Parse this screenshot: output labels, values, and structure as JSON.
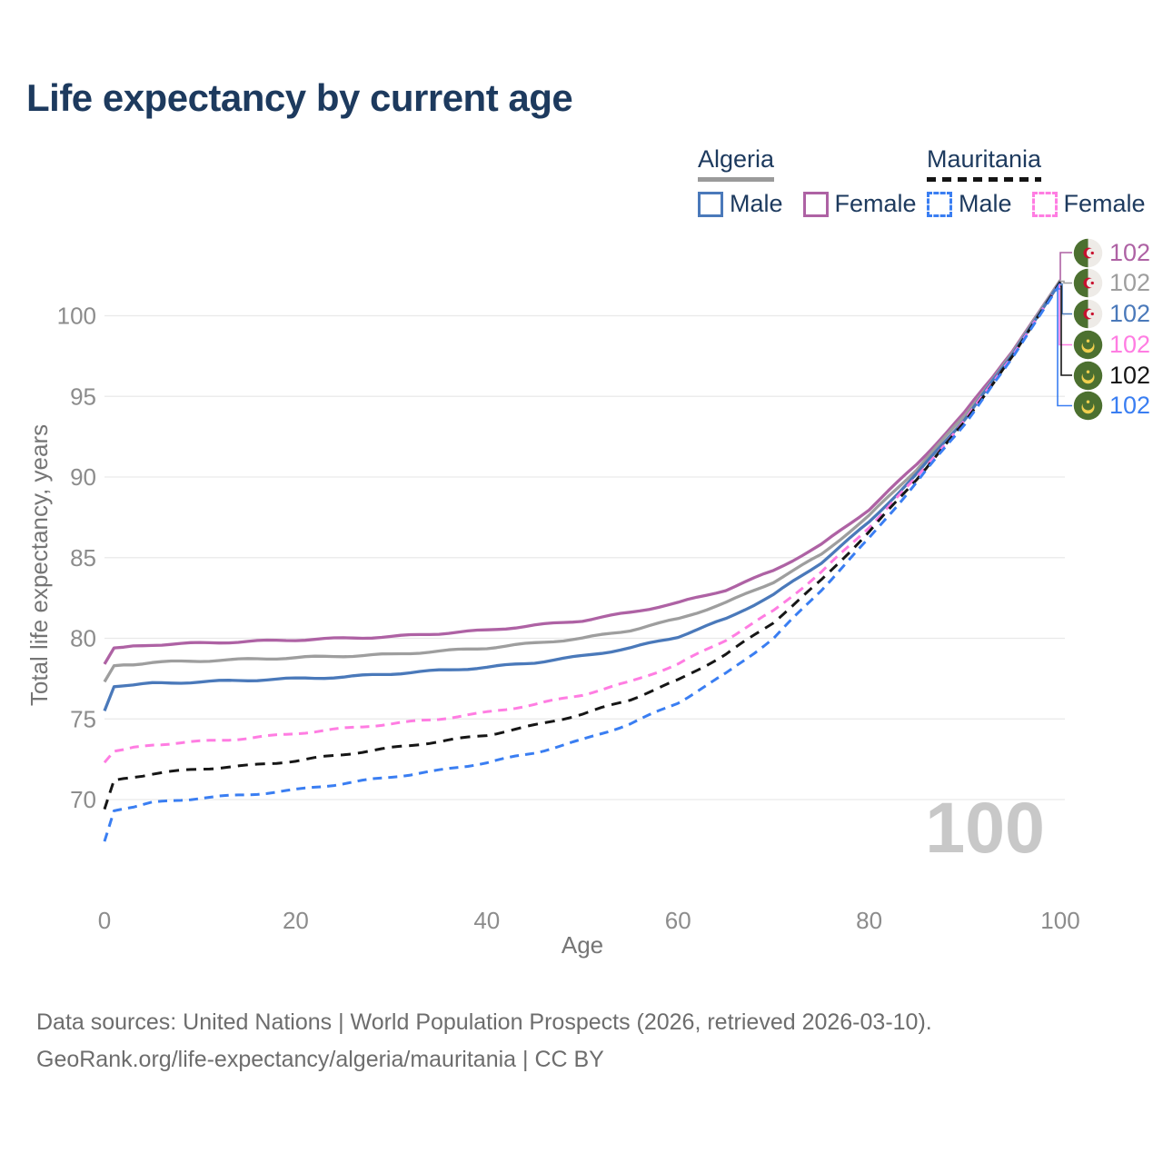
{
  "title": "Life expectancy by current age",
  "legend": {
    "groups": [
      {
        "label": "Algeria",
        "rule_style": "solid",
        "rule_color": "#9a9a9a",
        "items": [
          {
            "label": "Male",
            "color": "#4a79ba",
            "dashed": false
          },
          {
            "label": "Female",
            "color": "#ae62a4",
            "dashed": false
          }
        ]
      },
      {
        "label": "Mauritania",
        "rule_style": "dashed",
        "rule_color": "#141414",
        "items": [
          {
            "label": "Male",
            "color": "#3a7ef2",
            "dashed": true
          },
          {
            "label": "Female",
            "color": "#ff7de2",
            "dashed": true
          }
        ]
      }
    ]
  },
  "axes": {
    "x": {
      "title": "Age",
      "tick_values": [
        0,
        20,
        40,
        60,
        80,
        100
      ]
    },
    "y": {
      "title": "Total life expectancy, years",
      "tick_values": [
        70,
        75,
        80,
        85,
        90,
        95,
        100
      ]
    }
  },
  "watermark": "100",
  "grid_color": "#e9e9e9",
  "tick_label_color": "#8c8c8c",
  "axis_title_color": "#757575",
  "title_color": "#1d3a5e",
  "end_labels": [
    {
      "series": "algeria-female",
      "country": "Algeria",
      "flag": "algeria",
      "value": "102",
      "color": "#ae62a4"
    },
    {
      "series": "algeria-both",
      "country": "Algeria",
      "flag": "algeria",
      "value": "102",
      "color": "#9e9e9e"
    },
    {
      "series": "algeria-male",
      "country": "Algeria",
      "flag": "algeria",
      "value": "102",
      "color": "#4a79ba"
    },
    {
      "series": "mauritania-female",
      "country": "Mauritania",
      "flag": "mauritania",
      "value": "102",
      "color": "#ff7de2"
    },
    {
      "series": "mauritania-both",
      "country": "Mauritania",
      "flag": "mauritania",
      "value": "102",
      "color": "#161616"
    },
    {
      "series": "mauritania-male",
      "country": "Mauritania",
      "flag": "mauritania",
      "value": "102",
      "color": "#3a7ef2"
    }
  ],
  "footer": {
    "line1": "Data sources: United Nations | World Population Prospects (2026, retrieved 2026-03-10).",
    "line2": "GeoRank.org/life-expectancy/algeria/mauritania | CC BY"
  },
  "chart_data": {
    "type": "line",
    "title": "Life expectancy by current age",
    "xlabel": "Age",
    "ylabel": "Total life expectancy, years",
    "xlim": [
      0,
      100
    ],
    "ylim": [
      66.5,
      103.5
    ],
    "grid": "horizontal",
    "legend_position": "top-right",
    "ages": [
      0,
      1,
      5,
      10,
      15,
      20,
      25,
      30,
      35,
      40,
      45,
      50,
      55,
      60,
      65,
      70,
      75,
      80,
      85,
      90,
      95,
      100
    ],
    "series": [
      {
        "name": "Algeria Female",
        "country": "Algeria",
        "sex": "female",
        "color": "#ae62a4",
        "dashed": false,
        "values": [
          78.4,
          79.4,
          79.6,
          79.7,
          79.8,
          79.9,
          80.0,
          80.1,
          80.3,
          80.5,
          80.8,
          81.1,
          81.6,
          82.2,
          83.0,
          84.2,
          85.8,
          88.0,
          90.8,
          94.0,
          97.8,
          102.2
        ]
      },
      {
        "name": "Algeria Both sexes",
        "country": "Algeria",
        "sex": "both",
        "color": "#9e9e9e",
        "dashed": false,
        "values": [
          77.3,
          78.3,
          78.5,
          78.6,
          78.7,
          78.8,
          78.9,
          79.0,
          79.2,
          79.4,
          79.7,
          80.0,
          80.5,
          81.2,
          82.2,
          83.5,
          85.2,
          87.6,
          90.5,
          93.8,
          97.7,
          102.2
        ]
      },
      {
        "name": "Algeria Male",
        "country": "Algeria",
        "sex": "male",
        "color": "#4a79ba",
        "dashed": false,
        "values": [
          75.5,
          77.0,
          77.2,
          77.3,
          77.4,
          77.5,
          77.6,
          77.8,
          78.0,
          78.2,
          78.5,
          78.9,
          79.4,
          80.1,
          81.2,
          82.7,
          84.7,
          87.2,
          90.2,
          93.6,
          97.6,
          102.1
        ]
      },
      {
        "name": "Mauritania Female",
        "country": "Mauritania",
        "sex": "female",
        "color": "#ff7de2",
        "dashed": true,
        "values": [
          72.3,
          73.0,
          73.4,
          73.6,
          73.8,
          74.1,
          74.4,
          74.7,
          75.0,
          75.4,
          75.9,
          76.5,
          77.3,
          78.4,
          79.9,
          81.7,
          84.1,
          86.9,
          90.0,
          93.5,
          97.5,
          102.1
        ]
      },
      {
        "name": "Mauritania Both sexes",
        "country": "Mauritania",
        "sex": "both",
        "color": "#161616",
        "dashed": true,
        "values": [
          69.4,
          71.2,
          71.6,
          71.9,
          72.1,
          72.4,
          72.8,
          73.2,
          73.6,
          74.0,
          74.6,
          75.3,
          76.2,
          77.4,
          79.0,
          81.0,
          83.6,
          86.6,
          89.9,
          93.4,
          97.5,
          102.1
        ]
      },
      {
        "name": "Mauritania Male",
        "country": "Mauritania",
        "sex": "male",
        "color": "#3a7ef2",
        "dashed": true,
        "values": [
          67.4,
          69.3,
          69.8,
          70.1,
          70.3,
          70.6,
          71.0,
          71.4,
          71.8,
          72.3,
          72.9,
          73.7,
          74.7,
          76.0,
          77.8,
          80.0,
          83.0,
          86.2,
          89.7,
          93.3,
          97.4,
          102.0
        ]
      }
    ]
  }
}
